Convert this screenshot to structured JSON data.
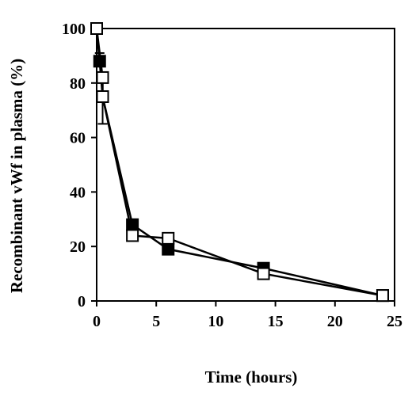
{
  "chart_data": {
    "type": "line",
    "title": "",
    "xlabel": "Time (hours)",
    "ylabel": "Recombinant vWf in plasma (%)",
    "xlim": [
      0,
      25
    ],
    "ylim": [
      0,
      100
    ],
    "xticks": [
      0,
      5,
      10,
      15,
      20,
      25
    ],
    "yticks": [
      0,
      20,
      40,
      60,
      80,
      100
    ],
    "grid": false,
    "legend": "none",
    "series": [
      {
        "marker": "filled-square",
        "color": "#000000",
        "x": [
          0,
          0.25,
          0.5,
          3,
          6,
          14,
          24
        ],
        "y": [
          100,
          88,
          75,
          28,
          19,
          12,
          2
        ],
        "error_upper": [
          0,
          3,
          0,
          0,
          0,
          0,
          0
        ]
      },
      {
        "marker": "open-square",
        "color": "#000000",
        "x": [
          0,
          0.5,
          0.5,
          3,
          6,
          14,
          24
        ],
        "y": [
          100,
          82,
          75,
          24,
          23,
          10,
          2
        ],
        "error_lower": [
          0,
          0,
          10,
          0,
          0,
          0,
          0
        ]
      }
    ]
  }
}
